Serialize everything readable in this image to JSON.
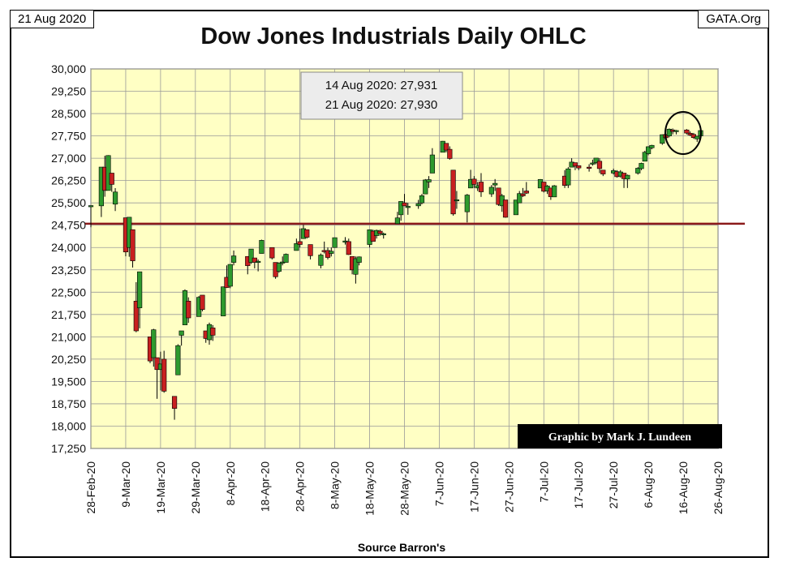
{
  "header": {
    "date_label": "21 Aug 2020",
    "source_label": "GATA.Org",
    "title": "Dow Jones Industrials Daily OHLC"
  },
  "annotation": {
    "line1": "14 Aug 2020: 27,931",
    "line2": "21 Aug 2020: 27,930"
  },
  "credit": "Graphic by Mark J. Lundeen",
  "chart_data": {
    "type": "ohlc-candlestick",
    "title": "Dow Jones Industrials Daily OHLC",
    "xlabel": "Source Barron's",
    "ylabel": "",
    "ylim": [
      17250,
      30000
    ],
    "y_ticks": [
      17250,
      18000,
      18750,
      19500,
      20250,
      21000,
      21750,
      22500,
      23250,
      24000,
      24750,
      25500,
      26250,
      27000,
      27750,
      28500,
      29250,
      30000
    ],
    "y_tick_labels": [
      "17,250",
      "18,000",
      "18,750",
      "19,500",
      "20,250",
      "21,000",
      "21,750",
      "22,500",
      "23,250",
      "24,000",
      "24,750",
      "25,500",
      "26,250",
      "27,000",
      "27,750",
      "28,500",
      "29,250",
      "30,000"
    ],
    "x_tick_labels": [
      "28-Feb-20",
      "9-Mar-20",
      "19-Mar-20",
      "29-Mar-20",
      "8-Apr-20",
      "18-Apr-20",
      "28-Apr-20",
      "8-May-20",
      "18-May-20",
      "28-May-20",
      "7-Jun-20",
      "17-Jun-20",
      "27-Jun-20",
      "7-Jul-20",
      "17-Jul-20",
      "27-Jul-20",
      "6-Aug-20",
      "16-Aug-20",
      "26-Aug-20"
    ],
    "x_range": [
      "2020-02-28",
      "2020-08-26"
    ],
    "reference_line": {
      "value": 24800,
      "color": "#8b1a1a"
    },
    "grid": true,
    "colors": {
      "plot_bg": "#ffffc4",
      "up": "#2e9a2e",
      "down": "#c82020",
      "wick": "#000000"
    },
    "candles": [
      {
        "date": "2020-02-28",
        "open": 25409,
        "high": 25409,
        "low": 24681,
        "close": 25409
      },
      {
        "date": "2020-03-02",
        "open": 25400,
        "high": 26703,
        "low": 25025,
        "close": 26703
      },
      {
        "date": "2020-03-03",
        "open": 26700,
        "high": 27084,
        "low": 25706,
        "close": 25917
      },
      {
        "date": "2020-03-04",
        "open": 25917,
        "high": 27102,
        "low": 25917,
        "close": 27091
      },
      {
        "date": "2020-03-05",
        "open": 26500,
        "high": 26500,
        "low": 25871,
        "close": 26121
      },
      {
        "date": "2020-03-06",
        "open": 25457,
        "high": 25995,
        "low": 25226,
        "close": 25865
      },
      {
        "date": "2020-03-09",
        "open": 25000,
        "high": 25000,
        "low": 23706,
        "close": 23851
      },
      {
        "date": "2020-03-10",
        "open": 24000,
        "high": 25020,
        "low": 23690,
        "close": 25018
      },
      {
        "date": "2020-03-11",
        "open": 24600,
        "high": 24600,
        "low": 23328,
        "close": 23553
      },
      {
        "date": "2020-03-12",
        "open": 22200,
        "high": 22837,
        "low": 21154,
        "close": 21200
      },
      {
        "date": "2020-03-13",
        "open": 21973,
        "high": 23190,
        "low": 21285,
        "close": 23185
      },
      {
        "date": "2020-03-16",
        "open": 21000,
        "high": 21000,
        "low": 20116,
        "close": 20189
      },
      {
        "date": "2020-03-17",
        "open": 20300,
        "high": 21268,
        "low": 19997,
        "close": 21237
      },
      {
        "date": "2020-03-18",
        "open": 20300,
        "high": 20300,
        "low": 18917,
        "close": 19899
      },
      {
        "date": "2020-03-19",
        "open": 19899,
        "high": 20500,
        "low": 19200,
        "close": 20087
      },
      {
        "date": "2020-03-20",
        "open": 20250,
        "high": 20532,
        "low": 19121,
        "close": 19173
      },
      {
        "date": "2020-03-23",
        "open": 19000,
        "high": 19000,
        "low": 18214,
        "close": 18592
      },
      {
        "date": "2020-03-24",
        "open": 19722,
        "high": 20751,
        "low": 19722,
        "close": 20704
      },
      {
        "date": "2020-03-25",
        "open": 21050,
        "high": 21200,
        "low": 20704,
        "close": 21200
      },
      {
        "date": "2020-03-26",
        "open": 21400,
        "high": 22595,
        "low": 21400,
        "close": 22552
      },
      {
        "date": "2020-03-27",
        "open": 22200,
        "high": 22327,
        "low": 21470,
        "close": 21636
      },
      {
        "date": "2020-03-30",
        "open": 21680,
        "high": 22370,
        "low": 21680,
        "close": 22327
      },
      {
        "date": "2020-03-31",
        "open": 22400,
        "high": 22400,
        "low": 21858,
        "close": 21917
      },
      {
        "date": "2020-04-01",
        "open": 21200,
        "high": 21200,
        "low": 20800,
        "close": 20943
      },
      {
        "date": "2020-04-02",
        "open": 20900,
        "high": 21477,
        "low": 20735,
        "close": 21413
      },
      {
        "date": "2020-04-03",
        "open": 21300,
        "high": 21394,
        "low": 20863,
        "close": 21052
      },
      {
        "date": "2020-04-06",
        "open": 21700,
        "high": 22680,
        "low": 21693,
        "close": 22680
      },
      {
        "date": "2020-04-07",
        "open": 23000,
        "high": 23400,
        "low": 22640,
        "close": 22654
      },
      {
        "date": "2020-04-08",
        "open": 22700,
        "high": 23433,
        "low": 22635,
        "close": 23433
      },
      {
        "date": "2020-04-09",
        "open": 23500,
        "high": 23900,
        "low": 23400,
        "close": 23719
      },
      {
        "date": "2020-04-13",
        "open": 23700,
        "high": 23700,
        "low": 23100,
        "close": 23390
      },
      {
        "date": "2020-04-14",
        "open": 23500,
        "high": 23900,
        "low": 23450,
        "close": 23949
      },
      {
        "date": "2020-04-15",
        "open": 23650,
        "high": 23650,
        "low": 23300,
        "close": 23504
      },
      {
        "date": "2020-04-16",
        "open": 23500,
        "high": 23600,
        "low": 23200,
        "close": 23538
      },
      {
        "date": "2020-04-17",
        "open": 23800,
        "high": 24264,
        "low": 23800,
        "close": 24242
      },
      {
        "date": "2020-04-20",
        "open": 24000,
        "high": 24000,
        "low": 23600,
        "close": 23650
      },
      {
        "date": "2020-04-21",
        "open": 23500,
        "high": 23500,
        "low": 22950,
        "close": 23018
      },
      {
        "date": "2020-04-22",
        "open": 23200,
        "high": 23500,
        "low": 23150,
        "close": 23475
      },
      {
        "date": "2020-04-23",
        "open": 23500,
        "high": 23700,
        "low": 23400,
        "close": 23515
      },
      {
        "date": "2020-04-24",
        "open": 23500,
        "high": 23800,
        "low": 23500,
        "close": 23775
      },
      {
        "date": "2020-04-27",
        "open": 23900,
        "high": 24300,
        "low": 23900,
        "close": 24133
      },
      {
        "date": "2020-04-28",
        "open": 24200,
        "high": 24638,
        "low": 24000,
        "close": 24101
      },
      {
        "date": "2020-04-29",
        "open": 24300,
        "high": 24764,
        "low": 24300,
        "close": 24634
      },
      {
        "date": "2020-04-30",
        "open": 24600,
        "high": 24600,
        "low": 24300,
        "close": 24345
      },
      {
        "date": "2020-05-01",
        "open": 24100,
        "high": 24100,
        "low": 23600,
        "close": 23724
      },
      {
        "date": "2020-05-04",
        "open": 23400,
        "high": 23800,
        "low": 23300,
        "close": 23749
      },
      {
        "date": "2020-05-05",
        "open": 23900,
        "high": 24200,
        "low": 23800,
        "close": 23883
      },
      {
        "date": "2020-05-06",
        "open": 23900,
        "high": 24000,
        "low": 23600,
        "close": 23665
      },
      {
        "date": "2020-05-07",
        "open": 23800,
        "high": 24000,
        "low": 23700,
        "close": 23875
      },
      {
        "date": "2020-05-08",
        "open": 24000,
        "high": 24331,
        "low": 24000,
        "close": 24331
      },
      {
        "date": "2020-05-11",
        "open": 24200,
        "high": 24350,
        "low": 24100,
        "close": 24221
      },
      {
        "date": "2020-05-12",
        "open": 24200,
        "high": 24300,
        "low": 23750,
        "close": 23764
      },
      {
        "date": "2020-05-13",
        "open": 23700,
        "high": 23700,
        "low": 23100,
        "close": 23247
      },
      {
        "date": "2020-05-14",
        "open": 23100,
        "high": 23700,
        "low": 22789,
        "close": 23625
      },
      {
        "date": "2020-05-15",
        "open": 23500,
        "high": 23700,
        "low": 23400,
        "close": 23685
      },
      {
        "date": "2020-05-18",
        "open": 24100,
        "high": 24600,
        "low": 24000,
        "close": 24597
      },
      {
        "date": "2020-05-19",
        "open": 24550,
        "high": 24600,
        "low": 24200,
        "close": 24207
      },
      {
        "date": "2020-05-20",
        "open": 24400,
        "high": 24600,
        "low": 24300,
        "close": 24576
      },
      {
        "date": "2020-05-21",
        "open": 24550,
        "high": 24600,
        "low": 24400,
        "close": 24474
      },
      {
        "date": "2020-05-22",
        "open": 24450,
        "high": 24500,
        "low": 24300,
        "close": 24465
      },
      {
        "date": "2020-05-26",
        "open": 24800,
        "high": 25200,
        "low": 24800,
        "close": 24995
      },
      {
        "date": "2020-05-27",
        "open": 25100,
        "high": 25548,
        "low": 24900,
        "close": 25548
      },
      {
        "date": "2020-05-28",
        "open": 25500,
        "high": 25800,
        "low": 25400,
        "close": 25400
      },
      {
        "date": "2020-05-29",
        "open": 25350,
        "high": 25500,
        "low": 25100,
        "close": 25383
      },
      {
        "date": "2020-06-01",
        "open": 25400,
        "high": 25600,
        "low": 25300,
        "close": 25475
      },
      {
        "date": "2020-06-02",
        "open": 25500,
        "high": 25800,
        "low": 25450,
        "close": 25742
      },
      {
        "date": "2020-06-03",
        "open": 25800,
        "high": 26300,
        "low": 25800,
        "close": 26270
      },
      {
        "date": "2020-06-04",
        "open": 26200,
        "high": 26400,
        "low": 26000,
        "close": 26281
      },
      {
        "date": "2020-06-05",
        "open": 26500,
        "high": 27338,
        "low": 26500,
        "close": 27111
      },
      {
        "date": "2020-06-08",
        "open": 27200,
        "high": 27580,
        "low": 27200,
        "close": 27572
      },
      {
        "date": "2020-06-09",
        "open": 27500,
        "high": 27500,
        "low": 27200,
        "close": 27272
      },
      {
        "date": "2020-06-10",
        "open": 27300,
        "high": 27400,
        "low": 26950,
        "close": 26990
      },
      {
        "date": "2020-06-11",
        "open": 26600,
        "high": 26600,
        "low": 25070,
        "close": 25128
      },
      {
        "date": "2020-06-12",
        "open": 25600,
        "high": 25900,
        "low": 25300,
        "close": 25606
      },
      {
        "date": "2020-06-15",
        "open": 25200,
        "high": 25800,
        "low": 24843,
        "close": 25763
      },
      {
        "date": "2020-06-16",
        "open": 26000,
        "high": 26611,
        "low": 26000,
        "close": 26290
      },
      {
        "date": "2020-06-17",
        "open": 26300,
        "high": 26400,
        "low": 26000,
        "close": 26120
      },
      {
        "date": "2020-06-18",
        "open": 26000,
        "high": 26200,
        "low": 25900,
        "close": 26080
      },
      {
        "date": "2020-06-19",
        "open": 26200,
        "high": 26500,
        "low": 25700,
        "close": 25871
      },
      {
        "date": "2020-06-22",
        "open": 25800,
        "high": 26100,
        "low": 25700,
        "close": 26025
      },
      {
        "date": "2020-06-23",
        "open": 26100,
        "high": 26300,
        "low": 25900,
        "close": 26156
      },
      {
        "date": "2020-06-24",
        "open": 26000,
        "high": 26000,
        "low": 25400,
        "close": 25445
      },
      {
        "date": "2020-06-25",
        "open": 25400,
        "high": 25800,
        "low": 25200,
        "close": 25745
      },
      {
        "date": "2020-06-26",
        "open": 25600,
        "high": 25600,
        "low": 25000,
        "close": 25016
      },
      {
        "date": "2020-06-29",
        "open": 25100,
        "high": 25600,
        "low": 25100,
        "close": 25596
      },
      {
        "date": "2020-06-30",
        "open": 25500,
        "high": 25900,
        "low": 25500,
        "close": 25813
      },
      {
        "date": "2020-07-01",
        "open": 25800,
        "high": 26000,
        "low": 25700,
        "close": 25735
      },
      {
        "date": "2020-07-02",
        "open": 25900,
        "high": 26200,
        "low": 25800,
        "close": 25827
      },
      {
        "date": "2020-07-06",
        "open": 26000,
        "high": 26300,
        "low": 26000,
        "close": 26287
      },
      {
        "date": "2020-07-07",
        "open": 26200,
        "high": 26200,
        "low": 25850,
        "close": 25890
      },
      {
        "date": "2020-07-08",
        "open": 25900,
        "high": 26100,
        "low": 25800,
        "close": 26067
      },
      {
        "date": "2020-07-09",
        "open": 26000,
        "high": 26000,
        "low": 25600,
        "close": 25706
      },
      {
        "date": "2020-07-10",
        "open": 25700,
        "high": 26100,
        "low": 25700,
        "close": 26075
      },
      {
        "date": "2020-07-13",
        "open": 26400,
        "high": 26600,
        "low": 26000,
        "close": 26086
      },
      {
        "date": "2020-07-14",
        "open": 26100,
        "high": 26700,
        "low": 26000,
        "close": 26643
      },
      {
        "date": "2020-07-15",
        "open": 26700,
        "high": 27000,
        "low": 26700,
        "close": 26870
      },
      {
        "date": "2020-07-16",
        "open": 26850,
        "high": 26850,
        "low": 26600,
        "close": 26734
      },
      {
        "date": "2020-07-17",
        "open": 26750,
        "high": 26750,
        "low": 26600,
        "close": 26672
      },
      {
        "date": "2020-07-20",
        "open": 26700,
        "high": 26800,
        "low": 26550,
        "close": 26681
      },
      {
        "date": "2020-07-21",
        "open": 26800,
        "high": 26950,
        "low": 26750,
        "close": 26840
      },
      {
        "date": "2020-07-22",
        "open": 26850,
        "high": 27000,
        "low": 26800,
        "close": 27005
      },
      {
        "date": "2020-07-23",
        "open": 26900,
        "high": 27000,
        "low": 26500,
        "close": 26652
      },
      {
        "date": "2020-07-24",
        "open": 26600,
        "high": 26600,
        "low": 26400,
        "close": 26470
      },
      {
        "date": "2020-07-27",
        "open": 26500,
        "high": 26650,
        "low": 26450,
        "close": 26584
      },
      {
        "date": "2020-07-28",
        "open": 26550,
        "high": 26600,
        "low": 26350,
        "close": 26379
      },
      {
        "date": "2020-07-29",
        "open": 26400,
        "high": 26600,
        "low": 26350,
        "close": 26540
      },
      {
        "date": "2020-07-30",
        "open": 26500,
        "high": 26500,
        "low": 26000,
        "close": 26314
      },
      {
        "date": "2020-07-31",
        "open": 26300,
        "high": 26450,
        "low": 26000,
        "close": 26428
      },
      {
        "date": "2020-08-03",
        "open": 26500,
        "high": 26700,
        "low": 26450,
        "close": 26664
      },
      {
        "date": "2020-08-04",
        "open": 26650,
        "high": 26850,
        "low": 26600,
        "close": 26828
      },
      {
        "date": "2020-08-05",
        "open": 26900,
        "high": 27250,
        "low": 26900,
        "close": 27201
      },
      {
        "date": "2020-08-06",
        "open": 27150,
        "high": 27400,
        "low": 27100,
        "close": 27387
      },
      {
        "date": "2020-08-07",
        "open": 27350,
        "high": 27450,
        "low": 27300,
        "close": 27433
      },
      {
        "date": "2020-08-10",
        "open": 27500,
        "high": 27800,
        "low": 27450,
        "close": 27791
      },
      {
        "date": "2020-08-11",
        "open": 27800,
        "high": 28050,
        "low": 27650,
        "close": 27687
      },
      {
        "date": "2020-08-12",
        "open": 27750,
        "high": 28000,
        "low": 27700,
        "close": 27977
      },
      {
        "date": "2020-08-13",
        "open": 27950,
        "high": 28000,
        "low": 27800,
        "close": 27897
      },
      {
        "date": "2020-08-14",
        "open": 27900,
        "high": 27950,
        "low": 27800,
        "close": 27931
      },
      {
        "date": "2020-08-17",
        "open": 27950,
        "high": 27980,
        "low": 27800,
        "close": 27845
      },
      {
        "date": "2020-08-18",
        "open": 27840,
        "high": 27900,
        "low": 27750,
        "close": 27779
      },
      {
        "date": "2020-08-19",
        "open": 27800,
        "high": 27850,
        "low": 27650,
        "close": 27692
      },
      {
        "date": "2020-08-20",
        "open": 27650,
        "high": 27750,
        "low": 27550,
        "close": 27740
      },
      {
        "date": "2020-08-21",
        "open": 27750,
        "high": 27950,
        "low": 27700,
        "close": 27930
      }
    ]
  }
}
